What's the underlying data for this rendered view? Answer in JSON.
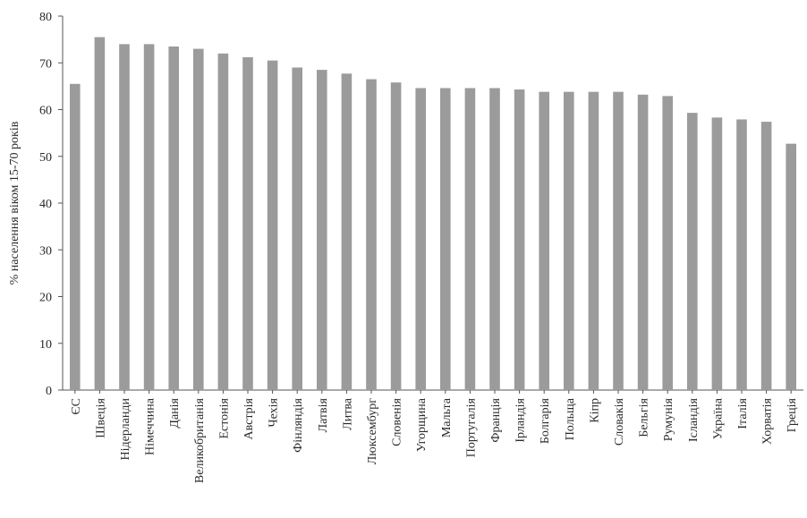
{
  "chart_data": {
    "type": "bar",
    "ylabel": "% населення віком 15-70 років",
    "ylim": [
      0,
      80
    ],
    "yticks": [
      0,
      10,
      20,
      30,
      40,
      50,
      60,
      70,
      80
    ],
    "grid": false,
    "bar_color": "#9b9b9b",
    "categories": [
      "ЄС",
      "Швеція",
      "Нідерланди",
      "Німеччина",
      "Данія",
      "Великобританія",
      "Естонія",
      "Австрія",
      "Чехія",
      "Фінляндія",
      "Латвія",
      "Литва",
      "Люксембург",
      "Словенія",
      "Угорщина",
      "Мальта",
      "Португалія",
      "Франція",
      "Ірландія",
      "Болгарія",
      "Польща",
      "Кіпр",
      "Словакія",
      "Бельгія",
      "Румунія",
      "Ісландія",
      "Україна",
      "Італія",
      "Хорватія",
      "Греція"
    ],
    "values": [
      65.5,
      75.5,
      74,
      74,
      73.5,
      73,
      72,
      71.2,
      70.5,
      69,
      68.5,
      67.7,
      66.5,
      65.8,
      64.6,
      64.6,
      64.6,
      64.6,
      64.3,
      63.8,
      63.8,
      63.8,
      63.8,
      63.2,
      62.9,
      59.3,
      58.3,
      57.9,
      57.4,
      52.7
    ]
  }
}
